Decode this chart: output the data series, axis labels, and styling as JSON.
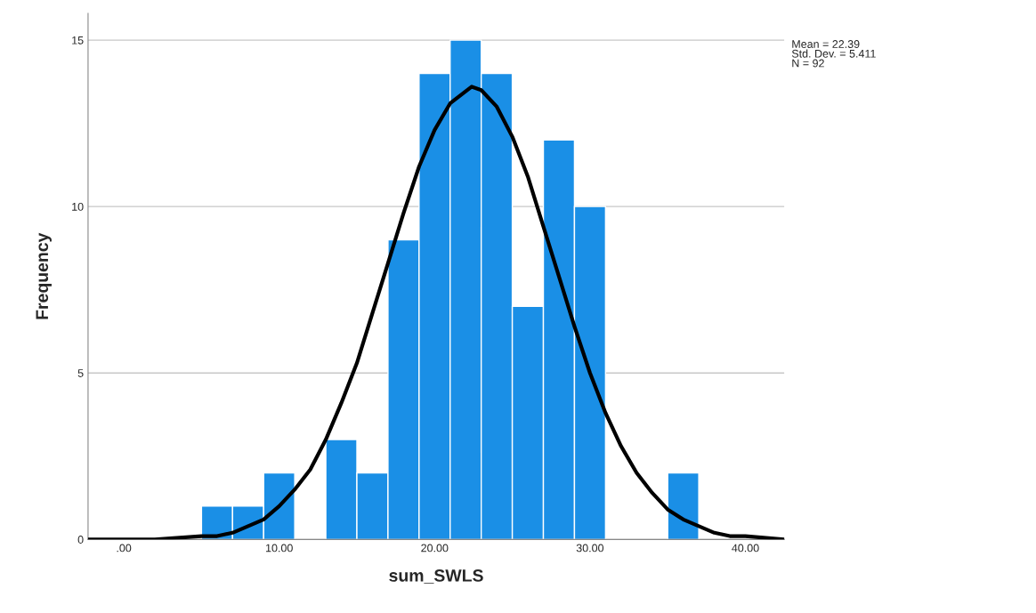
{
  "chart_data": {
    "type": "histogram",
    "xlabel": "sum_SWLS",
    "ylabel": "Frequency",
    "bins": [
      5,
      7,
      9,
      11,
      13,
      15,
      17,
      19,
      21,
      23,
      25,
      27,
      29,
      31,
      33,
      35,
      37
    ],
    "values": [
      1,
      1,
      2,
      0,
      3,
      2,
      9,
      14,
      15,
      14,
      7,
      12,
      10,
      0,
      0,
      2
    ],
    "color": "#1a8fe6",
    "series": [
      {
        "type": "line",
        "color": "#000000",
        "x": [
          -2.3,
          2,
          5,
          6,
          7,
          8,
          9,
          10,
          11,
          12,
          13,
          14,
          15,
          16,
          17,
          18,
          19,
          20,
          21,
          22.39,
          23,
          24,
          25,
          26,
          27,
          28,
          29,
          30,
          31,
          32,
          33,
          34,
          35,
          36,
          37,
          38,
          39,
          40,
          42.5
        ],
        "values": [
          0,
          0,
          0.1,
          0.1,
          0.2,
          0.4,
          0.6,
          1.0,
          1.5,
          2.1,
          3.0,
          4.1,
          5.3,
          6.8,
          8.3,
          9.8,
          11.2,
          12.3,
          13.1,
          13.6,
          13.5,
          13.0,
          12.1,
          10.9,
          9.4,
          7.9,
          6.4,
          5.0,
          3.8,
          2.8,
          2.0,
          1.4,
          0.9,
          0.6,
          0.4,
          0.2,
          0.1,
          0.1,
          0
        ]
      }
    ],
    "xlim": [
      -2.3,
      42.5
    ],
    "ylim": [
      0,
      15.8
    ],
    "xticks": [
      {
        "value": 0,
        "label": ".00"
      },
      {
        "value": 10,
        "label": "10.00"
      },
      {
        "value": 20,
        "label": "20.00"
      },
      {
        "value": 30,
        "label": "30.00"
      },
      {
        "value": 40,
        "label": "40.00"
      }
    ],
    "yticks": [
      0,
      5,
      10,
      15
    ],
    "grid": "y",
    "annotations": [
      "Mean = 22.39\nStd. Dev. = 5.411\nN = 92"
    ]
  }
}
